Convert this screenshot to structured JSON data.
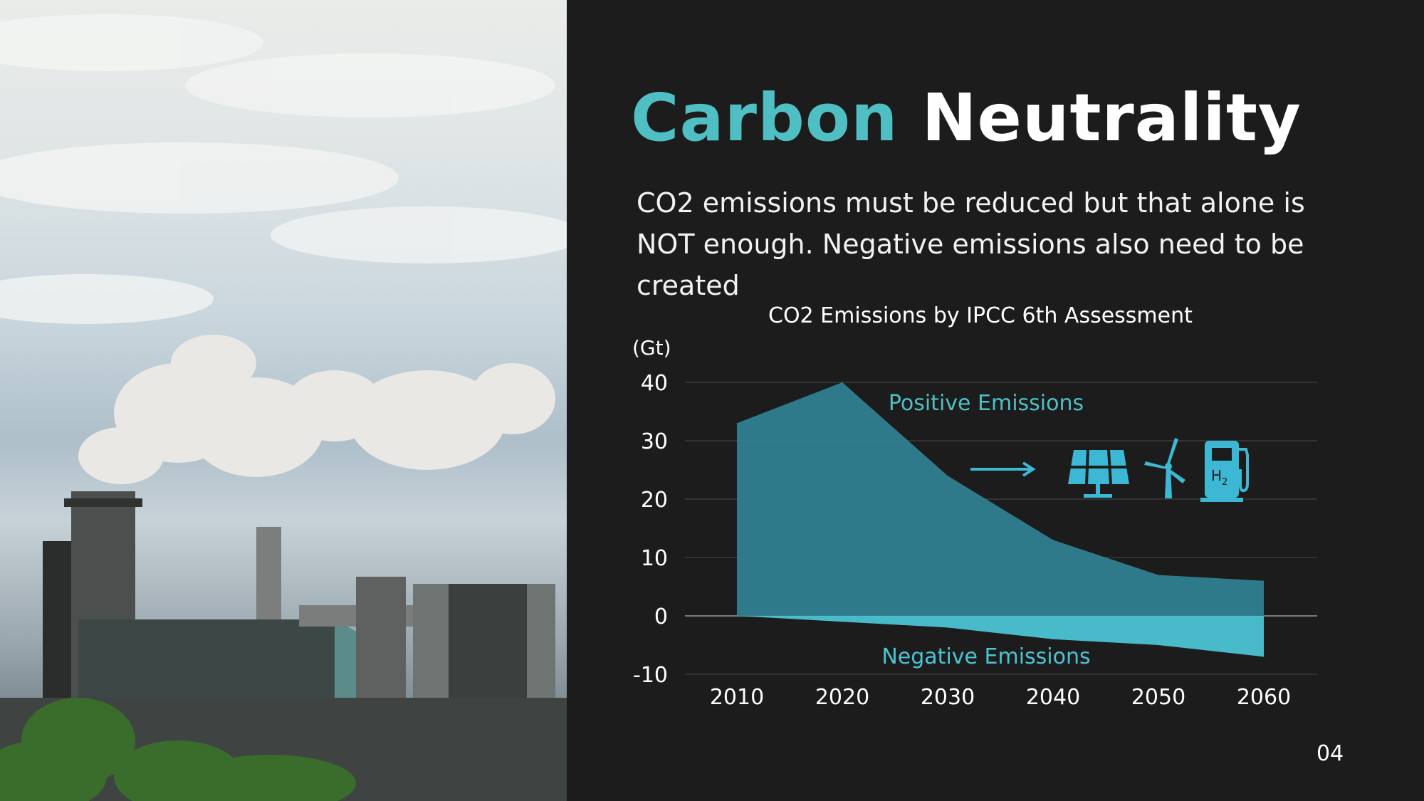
{
  "slide": {
    "title_accent": "Carbon",
    "title_rest": "Neutrality",
    "subtitle": "CO2 emissions must be reduced but that alone is NOT enough. Negative emissions also need to be created",
    "page_number": "04"
  },
  "colors": {
    "background": "#1c1c1c",
    "accent": "#4fbfc4",
    "positive_fill": "#2f7f90",
    "negative_fill": "#4cc3d4",
    "icon": "#3cb8d5"
  },
  "icons": [
    "arrow-right-icon",
    "solar-panel-icon",
    "wind-turbine-icon",
    "hydrogen-pump-icon"
  ],
  "chart_data": {
    "type": "area",
    "title": "CO2 Emissions by IPCC 6th Assessment",
    "ylabel": "(Gt)",
    "xlabel": "",
    "x": [
      2010,
      2020,
      2030,
      2040,
      2050,
      2060
    ],
    "series": [
      {
        "name": "Positive Emissions",
        "values": [
          33,
          40,
          24,
          13,
          7,
          6
        ]
      },
      {
        "name": "Negative Emissions",
        "values": [
          0,
          -1,
          -2,
          -4,
          -5,
          -7
        ]
      }
    ],
    "ylim": [
      -10,
      40
    ],
    "yticks": [
      40,
      30,
      20,
      10,
      0,
      -10
    ],
    "xticks": [
      2010,
      2020,
      2030,
      2040,
      2050,
      2060
    ],
    "grid": true
  }
}
